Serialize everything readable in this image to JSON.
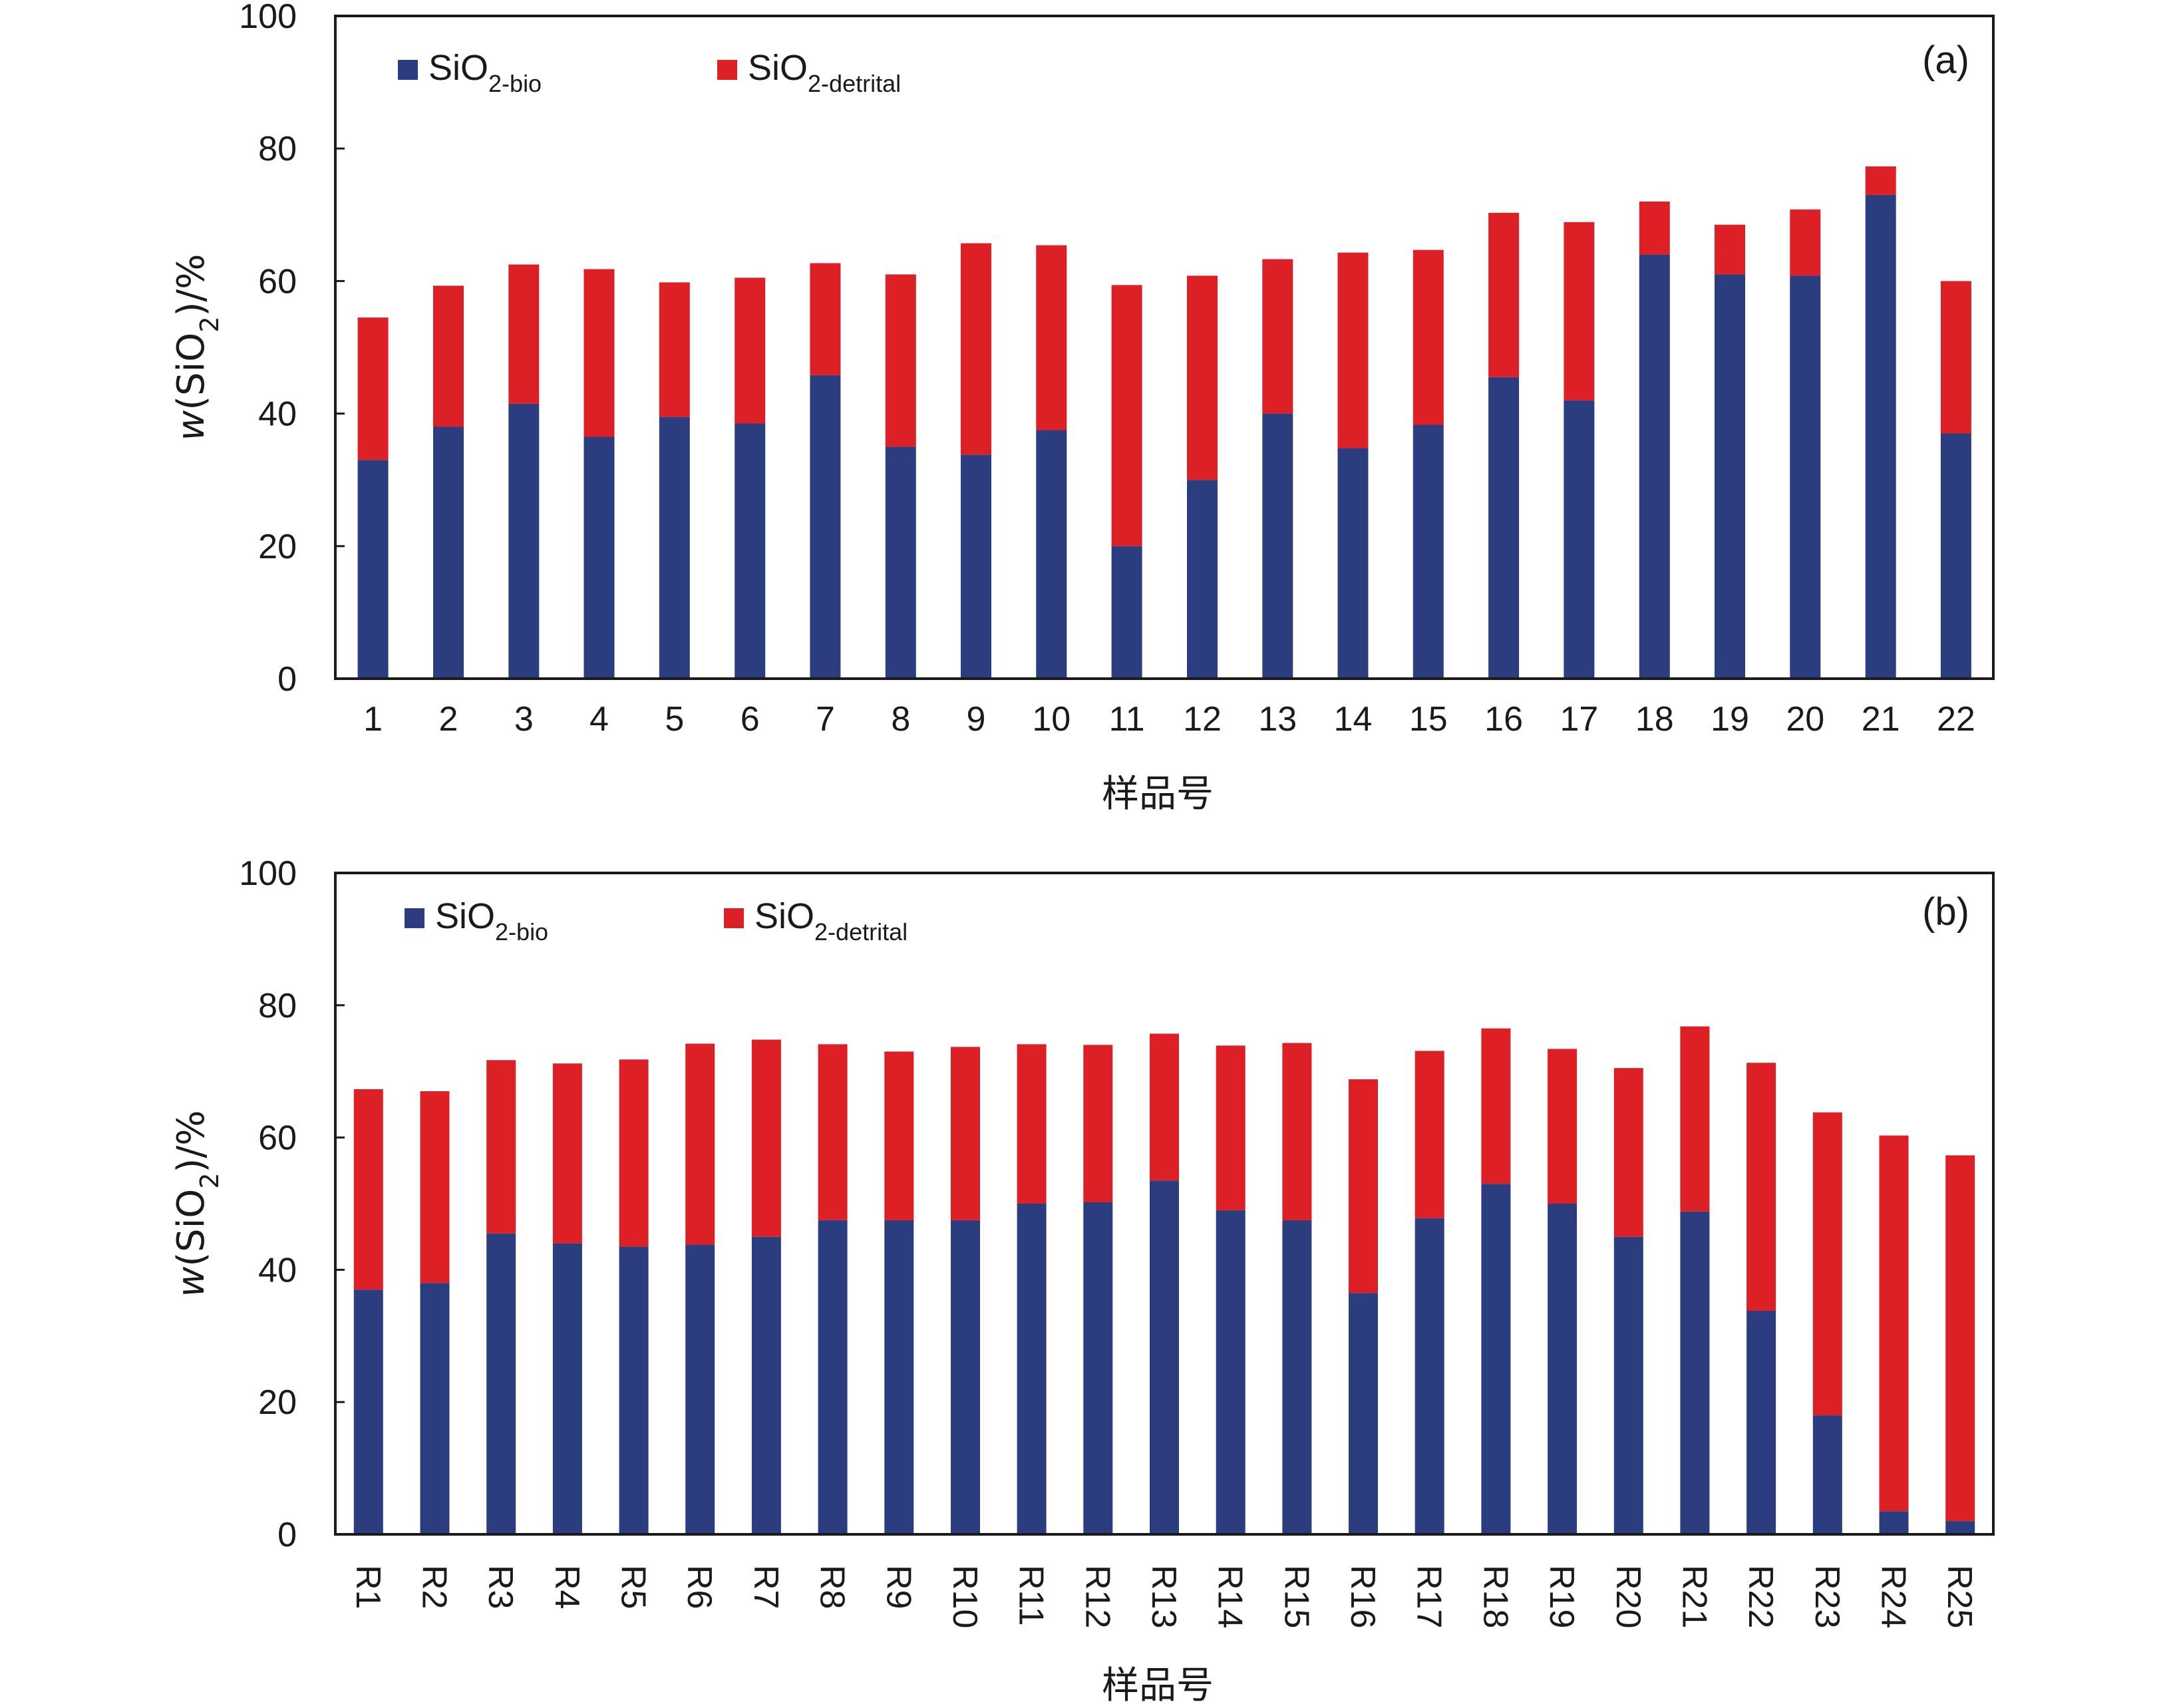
{
  "colors": {
    "bio": "#2b3d7e",
    "detrital": "#dc2026",
    "axis": "#1a1a1a"
  },
  "chart_data": [
    {
      "type": "bar",
      "stacked": true,
      "panel_label": "(a)",
      "xlabel": "样品号",
      "ylabel": "w(SiO2)/%",
      "ylim": [
        0,
        100
      ],
      "yticks": [
        "0",
        "20",
        "40",
        "60",
        "80",
        "100"
      ],
      "legend_position": "top-left",
      "categories": [
        "1",
        "2",
        "3",
        "4",
        "5",
        "6",
        "7",
        "8",
        "9",
        "10",
        "11",
        "12",
        "13",
        "14",
        "15",
        "16",
        "17",
        "18",
        "19",
        "20",
        "21",
        "22"
      ],
      "series": [
        {
          "name": "SiO2-bio",
          "values": [
            33.0,
            38.0,
            41.5,
            36.5,
            39.5,
            38.5,
            45.8,
            35.0,
            33.8,
            37.5,
            20.0,
            30.0,
            40.0,
            34.8,
            38.3,
            45.5,
            42.0,
            64.0,
            61.0,
            60.8,
            73.0,
            37.0
          ]
        },
        {
          "name": "SiO2-detrital",
          "values": [
            21.5,
            21.3,
            21.0,
            25.3,
            20.3,
            22.0,
            16.9,
            26.0,
            31.9,
            27.9,
            39.4,
            30.8,
            23.3,
            29.5,
            26.4,
            24.8,
            26.9,
            8.0,
            7.5,
            10.0,
            4.3,
            23.0
          ]
        }
      ],
      "legend": [
        {
          "main": "SiO",
          "sub": "2-bio"
        },
        {
          "main": "SiO",
          "sub": "2-detrital"
        }
      ]
    },
    {
      "type": "bar",
      "stacked": true,
      "panel_label": "(b)",
      "xlabel": "样品号",
      "ylabel": "w(SiO2)/%",
      "ylim": [
        0,
        100
      ],
      "yticks": [
        "0",
        "20",
        "40",
        "60",
        "80",
        "100"
      ],
      "legend_position": "top-left",
      "categories": [
        "R1",
        "R2",
        "R3",
        "R4",
        "R5",
        "R6",
        "R7",
        "R8",
        "R9",
        "R10",
        "R11",
        "R12",
        "R13",
        "R14",
        "R15",
        "R16",
        "R17",
        "R18",
        "R19",
        "R20",
        "R21",
        "R22",
        "R23",
        "R24",
        "R25"
      ],
      "series": [
        {
          "name": "SiO2-bio",
          "values": [
            37.0,
            38.0,
            45.5,
            44.0,
            43.5,
            43.8,
            45.0,
            47.5,
            47.5,
            47.5,
            50.0,
            50.2,
            53.5,
            49.0,
            47.5,
            36.5,
            47.8,
            53.0,
            50.0,
            45.0,
            48.8,
            33.8,
            18.0,
            3.5,
            2.0
          ]
        },
        {
          "name": "SiO2-detrital",
          "values": [
            30.3,
            29.0,
            26.2,
            27.2,
            28.3,
            30.4,
            29.8,
            26.6,
            25.5,
            26.2,
            24.1,
            23.8,
            22.2,
            24.9,
            26.8,
            32.3,
            25.3,
            23.5,
            23.4,
            25.5,
            28.0,
            37.5,
            45.8,
            56.8,
            55.3
          ]
        }
      ],
      "legend": [
        {
          "main": "SiO",
          "sub": "2-bio"
        },
        {
          "main": "SiO",
          "sub": "2-detrital"
        }
      ]
    }
  ]
}
